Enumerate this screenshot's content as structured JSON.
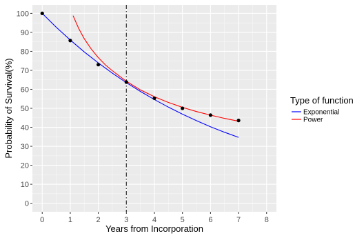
{
  "chart_data": {
    "type": "line",
    "title": "",
    "xlabel": "Years from Incorporation",
    "ylabel": "Probability of Survival(%)",
    "xlim": [
      -0.35,
      8.35
    ],
    "ylim": [
      -4.5,
      104.5
    ],
    "x_ticks": [
      0,
      1,
      2,
      3,
      4,
      5,
      6,
      7,
      8
    ],
    "y_ticks": [
      0,
      10,
      20,
      30,
      40,
      50,
      60,
      70,
      80,
      90,
      100
    ],
    "grid": true,
    "vline": {
      "x": 3,
      "style": "dashdot",
      "color": "#333333"
    },
    "points": {
      "x": [
        0,
        1,
        2,
        3,
        4,
        5,
        6,
        7
      ],
      "y": [
        100,
        85.7,
        73,
        63.8,
        55.3,
        50,
        46.4,
        43.6
      ],
      "color": "#000000"
    },
    "legend": {
      "title": "Type of function",
      "position": "right"
    },
    "series": [
      {
        "name": "Exponential",
        "color": "#0000ff",
        "x": [
          0,
          0.5,
          1,
          1.5,
          2,
          2.5,
          3,
          3.5,
          4,
          4.5,
          5,
          5.5,
          6,
          6.5,
          7
        ],
        "y": [
          100,
          92.7,
          86,
          79.7,
          73.9,
          68.5,
          63.5,
          58.9,
          54.6,
          50.6,
          46.9,
          43.5,
          40.3,
          37.4,
          34.7
        ]
      },
      {
        "name": "Power",
        "color": "#ff0000",
        "x": [
          1.1,
          1.3,
          1.5,
          1.75,
          2,
          2.25,
          2.5,
          2.75,
          3,
          3.5,
          4,
          4.5,
          5,
          5.5,
          6,
          6.5,
          7
        ],
        "y": [
          98.8,
          92.1,
          86.6,
          81.2,
          76.7,
          72.9,
          69.8,
          67,
          64.2,
          59.7,
          56.1,
          53.1,
          50.5,
          48.3,
          46.4,
          44.7,
          43.2
        ]
      }
    ]
  }
}
